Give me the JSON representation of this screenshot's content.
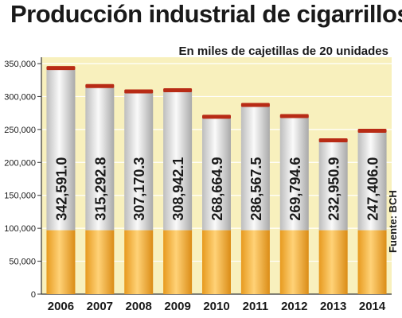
{
  "chart_data": {
    "type": "bar",
    "title": "Producción industrial de cigarrillos",
    "subtitle": "En miles de cajetillas de 20 unidades",
    "source": "Fuente: BCH",
    "categories": [
      "2006",
      "2007",
      "2008",
      "2009",
      "2010",
      "2011",
      "2012",
      "2013",
      "2014"
    ],
    "values": [
      342591.0,
      315292.8,
      307170.3,
      308942.1,
      268664.9,
      286567.5,
      269794.6,
      232950.9,
      247406.0
    ],
    "value_labels": [
      "342,591.0",
      "315,292.8",
      "307,170.3",
      "308,942.1",
      "268,664.9",
      "286,567.5",
      "269,794.6",
      "232,950.9",
      "247,406.0"
    ],
    "ylim": [
      0,
      350000
    ],
    "yticks": [
      0,
      50000,
      100000,
      150000,
      200000,
      250000,
      300000,
      350000
    ],
    "ytick_labels": [
      "0",
      "50,000",
      "100,000",
      "150,000",
      "200,000",
      "250,000",
      "300,000",
      "350,000"
    ],
    "grid": true,
    "colors": {
      "plot_background": "#f8f0bd",
      "filter": "#f5b63a",
      "paper": "#dcdcdc",
      "ember": "#b82b15",
      "text": "#1a1a1a"
    }
  }
}
